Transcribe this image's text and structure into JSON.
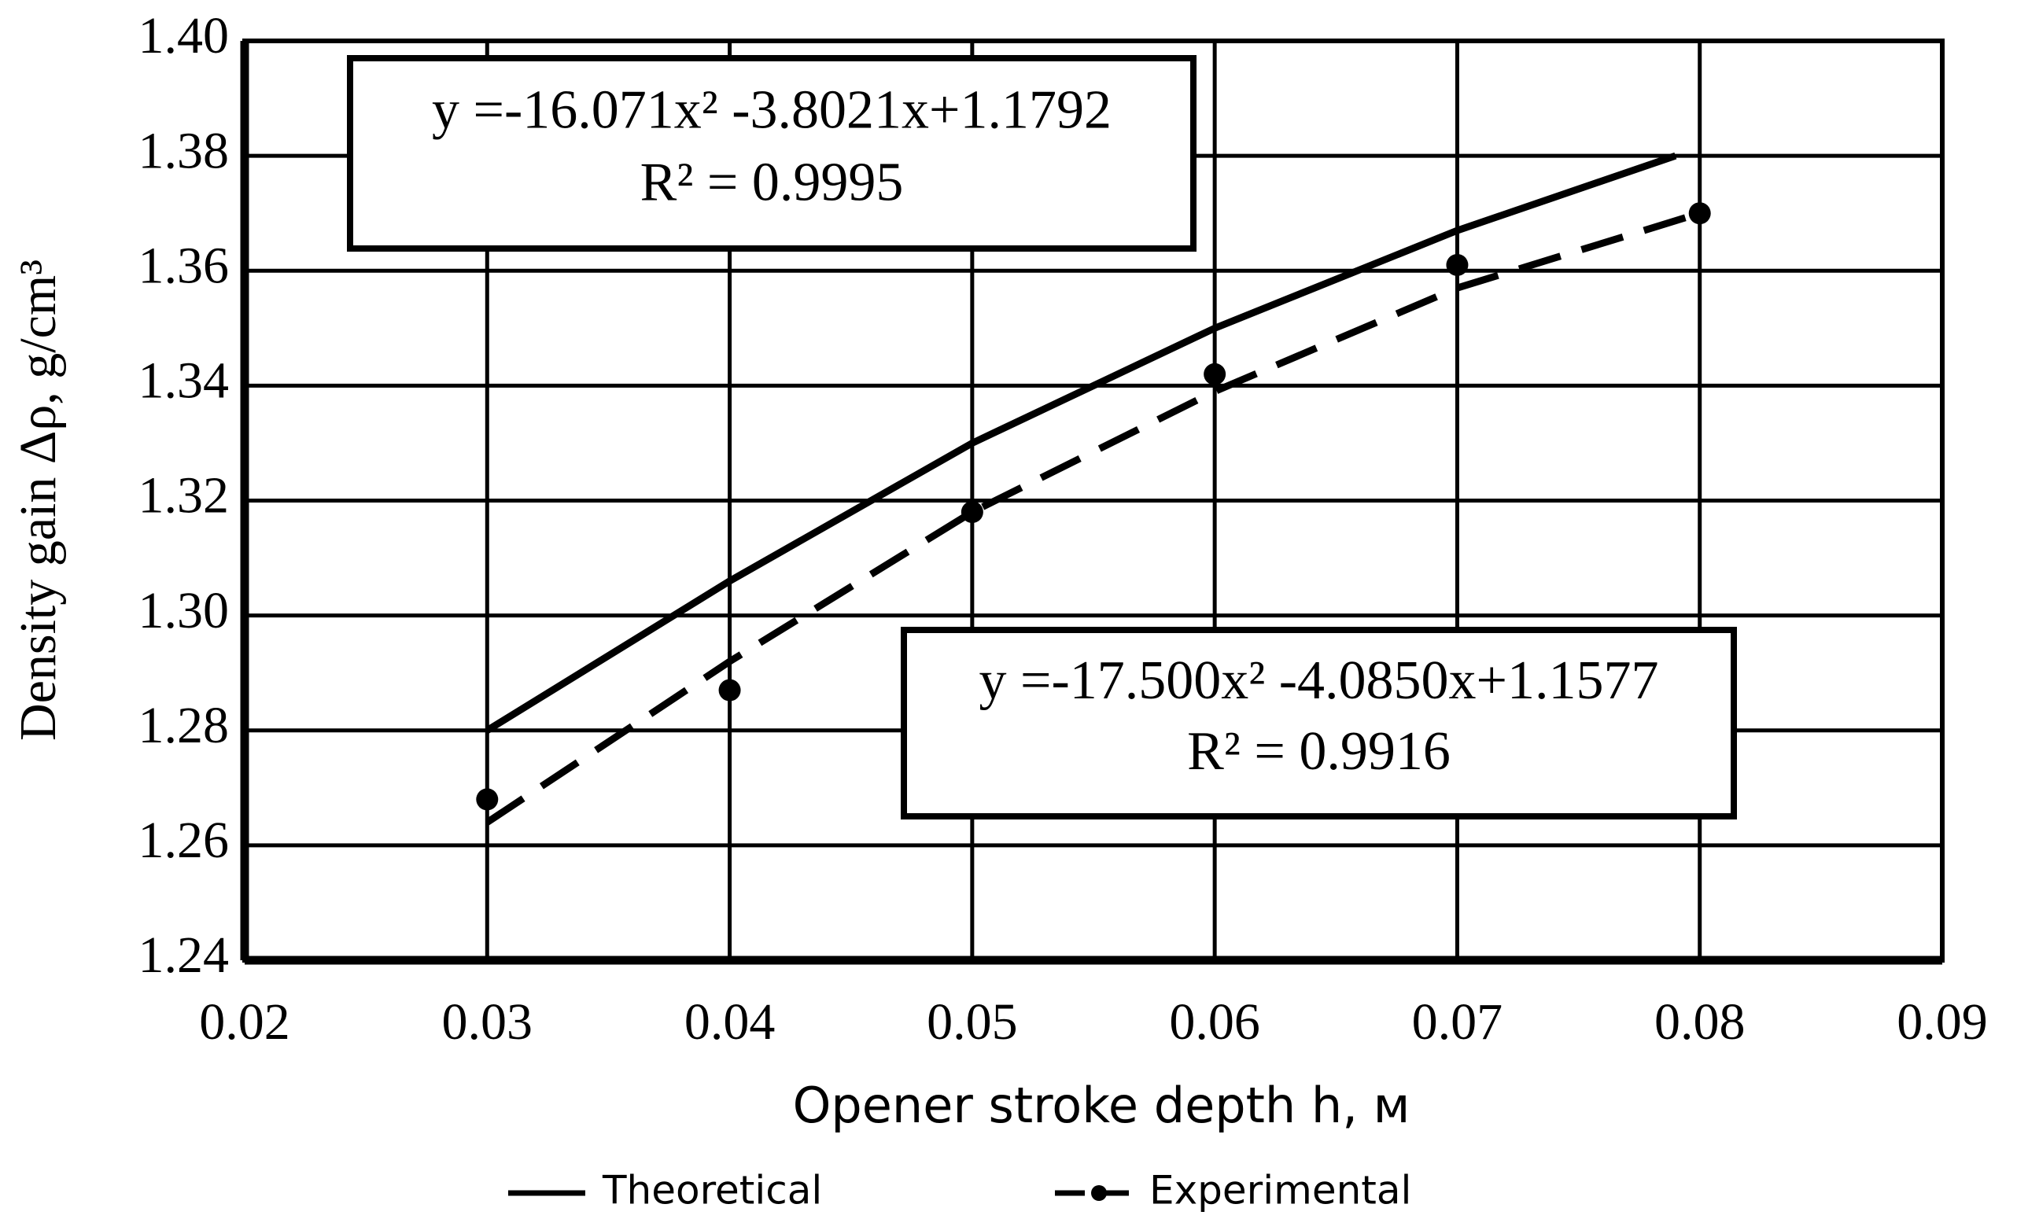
{
  "chart_data": {
    "type": "line",
    "xlabel": "Opener stroke depth h, м",
    "ylabel": "Density gain Δρ, g/cm³",
    "xlim": [
      0.02,
      0.09
    ],
    "xticks": [
      0.02,
      0.03,
      0.04,
      0.05,
      0.06,
      0.07,
      0.08,
      0.09
    ],
    "ylim": [
      1.24,
      1.4
    ],
    "yticks": [
      1.24,
      1.26,
      1.28,
      {
        "value": 1.3,
        "label": "1.30"
      },
      1.32,
      1.34,
      1.36,
      1.38,
      {
        "value": 1.4,
        "label": "1.40"
      }
    ],
    "grid": true,
    "series": [
      {
        "name": "Theoretical",
        "color": "#000000",
        "line_style": "solid",
        "marker": false,
        "x": [
          0.03,
          0.04,
          0.05,
          0.06,
          0.07,
          0.079
        ],
        "values": [
          1.28,
          1.306,
          1.33,
          1.35,
          1.367,
          1.38
        ]
      },
      {
        "name": "Experimental",
        "color": "#000000",
        "line_style": "dashed",
        "marker": true,
        "x": [
          0.03,
          0.04,
          0.05,
          0.06,
          0.07,
          0.08
        ],
        "values": [
          1.268,
          1.287,
          1.318,
          1.342,
          1.361,
          1.37
        ],
        "trend_x": [
          0.03,
          0.04,
          0.05,
          0.06,
          0.07,
          0.08
        ],
        "trend_values": [
          1.264,
          1.292,
          1.318,
          1.339,
          1.357,
          1.37
        ]
      }
    ],
    "annotations": [
      {
        "lines": [
          "y =-16.071x² -3.8021x+1.1792",
          "R² = 0.9995"
        ]
      },
      {
        "lines": [
          "y =-17.500x² -4.0850x+1.1577",
          "R² = 0.9916"
        ]
      }
    ]
  }
}
